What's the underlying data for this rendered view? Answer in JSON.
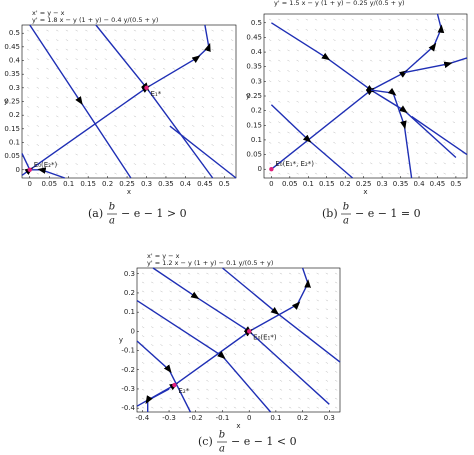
{
  "chart_data": [
    {
      "type": "phase",
      "equations": [
        "x' = y − x",
        "y' = 1.8 x − y (1 + y) − 0.4 y/(0.5 + y)"
      ],
      "xlabel": "x",
      "ylabel": "y",
      "xlim": [
        -0.02,
        0.53
      ],
      "ylim": [
        -0.03,
        0.53
      ],
      "xticks": [
        0,
        0.05,
        0.1,
        0.15,
        0.2,
        0.25,
        0.3,
        0.35,
        0.4,
        0.45,
        0.5
      ],
      "yticks": [
        0,
        0.05,
        0.1,
        0.15,
        0.2,
        0.25,
        0.3,
        0.35,
        0.4,
        0.45,
        0.5
      ],
      "series": [
        {
          "color": "#1f2fb5",
          "x": [
            -0.02,
            0,
            0.3,
            0.43,
            0.46,
            0.45
          ],
          "y": [
            -0.02,
            0,
            0.3,
            0.41,
            0.45,
            0.53
          ]
        },
        {
          "color": "#1f2fb5",
          "x": [
            0,
            0.13,
            0.26
          ],
          "y": [
            0.53,
            0.25,
            -0.03
          ]
        },
        {
          "color": "#1f2fb5",
          "x": [
            0.17,
            0.3,
            0.47
          ],
          "y": [
            0.53,
            0.3,
            -0.03
          ]
        },
        {
          "color": "#1f2fb5",
          "x": [
            0.36,
            0.53
          ],
          "y": [
            0.16,
            -0.03
          ]
        },
        {
          "color": "#1f2fb5",
          "x": [
            0.09,
            0.03,
            0
          ],
          "y": [
            -0.03,
            0.0,
            0.0
          ]
        },
        {
          "color": "#1f2fb5",
          "x": [
            -0.02,
            0
          ],
          "y": [
            0.06,
            0
          ]
        }
      ],
      "points": [
        {
          "x": 0,
          "y": 0,
          "label": "E₀(E₂*)"
        },
        {
          "x": 0.3,
          "y": 0.3,
          "label": "E₁*"
        }
      ],
      "caption": {
        "tag": "(a)",
        "num": "b",
        "den": "a",
        "rest": "− e − 1 > 0"
      }
    },
    {
      "type": "phase",
      "equations": [
        "x' = y − x",
        "y' = 1.5 x − y (1 + y) − 0.25 y/(0.5 + y)"
      ],
      "xlabel": "x",
      "ylabel": "y",
      "xlim": [
        -0.02,
        0.53
      ],
      "ylim": [
        -0.03,
        0.53
      ],
      "xticks": [
        0,
        0.05,
        0.1,
        0.15,
        0.2,
        0.25,
        0.3,
        0.35,
        0.4,
        0.45,
        0.5
      ],
      "yticks": [
        0,
        0.05,
        0.1,
        0.15,
        0.2,
        0.25,
        0.3,
        0.35,
        0.4,
        0.45,
        0.5
      ],
      "series": [
        {
          "color": "#1f2fb5",
          "x": [
            0,
            0.27,
            0.36,
            0.44,
            0.46,
            0.45
          ],
          "y": [
            0,
            0.27,
            0.33,
            0.42,
            0.48,
            0.53
          ]
        },
        {
          "color": "#1f2fb5",
          "x": [
            0,
            0.15,
            0.27,
            0.36,
            0.5
          ],
          "y": [
            0.5,
            0.38,
            0.27,
            0.2,
            0.04
          ]
        },
        {
          "color": "#1f2fb5",
          "x": [
            0.27,
            0.33,
            0.36,
            0.38
          ],
          "y": [
            0.27,
            0.26,
            0.15,
            -0.03
          ]
        },
        {
          "color": "#1f2fb5",
          "x": [
            0,
            0.1,
            0.22
          ],
          "y": [
            0.22,
            0.1,
            -0.03
          ]
        },
        {
          "color": "#1f2fb5",
          "x": [
            0.36,
            0.48,
            0.53
          ],
          "y": [
            0.33,
            0.36,
            0.38
          ]
        },
        {
          "color": "#1f2fb5",
          "x": [
            0.38,
            0.53
          ],
          "y": [
            0.18,
            0.05
          ]
        }
      ],
      "points": [
        {
          "x": 0,
          "y": 0,
          "label": "E₀(E₁*, E₂*)"
        }
      ],
      "caption": {
        "tag": "(b)",
        "num": "b",
        "den": "a",
        "rest": "− e − 1 = 0"
      }
    },
    {
      "type": "phase",
      "equations": [
        "x' = y − x",
        "y' = 1.2 x − y (1 + y) − 0.1 y/(0.5 + y)"
      ],
      "xlabel": "x",
      "ylabel": "y",
      "xlim": [
        -0.42,
        0.34
      ],
      "ylim": [
        -0.42,
        0.33
      ],
      "xticks": [
        -0.4,
        -0.3,
        -0.2,
        -0.1,
        0,
        0.1,
        0.2,
        0.3
      ],
      "yticks": [
        -0.4,
        -0.3,
        -0.2,
        -0.1,
        0,
        0.1,
        0.2,
        0.3
      ],
      "series": [
        {
          "color": "#1f2fb5",
          "x": [
            -0.42,
            -0.28,
            0,
            0.18,
            0.22,
            0.2
          ],
          "y": [
            -0.39,
            -0.28,
            0,
            0.14,
            0.25,
            0.33
          ]
        },
        {
          "color": "#1f2fb5",
          "x": [
            -0.36,
            -0.2,
            0,
            0.3
          ],
          "y": [
            0.33,
            0.18,
            0,
            -0.38
          ]
        },
        {
          "color": "#1f2fb5",
          "x": [
            -0.42,
            -0.1,
            0.08
          ],
          "y": [
            0.16,
            -0.13,
            -0.42
          ]
        },
        {
          "color": "#1f2fb5",
          "x": [
            -0.42,
            -0.3,
            -0.22
          ],
          "y": [
            -0.05,
            -0.2,
            -0.42
          ]
        },
        {
          "color": "#1f2fb5",
          "x": [
            -0.1,
            0.1,
            0.34
          ],
          "y": [
            0.33,
            0.1,
            -0.16
          ]
        },
        {
          "color": "#1f2fb5",
          "x": [
            -0.3,
            -0.38,
            -0.38
          ],
          "y": [
            -0.3,
            -0.36,
            -0.42
          ]
        }
      ],
      "points": [
        {
          "x": 0,
          "y": 0,
          "label": "E₀(E₁*)"
        },
        {
          "x": -0.28,
          "y": -0.28,
          "label": "E₂*"
        }
      ],
      "caption": {
        "tag": "(c)",
        "num": "b",
        "den": "a",
        "rest": "− e − 1 < 0"
      }
    }
  ]
}
